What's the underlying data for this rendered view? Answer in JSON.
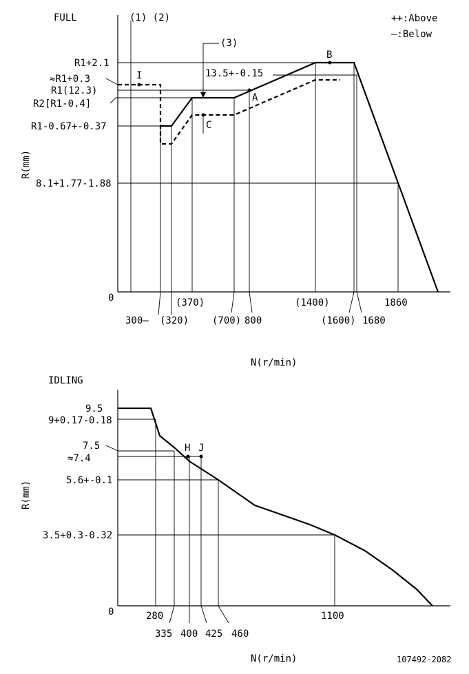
{
  "full": {
    "title": "FULL",
    "notes_12": "(1) (2)",
    "legend_above": "++:Above",
    "legend_below": "—:Below",
    "note3": "(3)",
    "y_axis_label": "R(mm)",
    "x_axis_label": "N(r/min)",
    "y_labels": [
      "R1+2.1",
      "≈R1+0.3",
      "R1(12.3)",
      "R2[R1-0.4]",
      "R1-0.67+-0.37",
      "8.1+1.77-1.88",
      "0"
    ],
    "label_13_5": "13.5+-0.15",
    "points": [
      "I",
      "B",
      "A",
      "C"
    ],
    "x_ticks": [
      "300—",
      "(320)",
      "(370)",
      "(700)",
      "800",
      "(1400)",
      "(1600)",
      "1680",
      "1860"
    ]
  },
  "idling": {
    "title": "IDLING",
    "y_axis_label": "R(mm)",
    "x_axis_label": "N(r/min)",
    "y_labels": [
      "9.5",
      "9+0.17-0.18",
      "7.5",
      "≈7.4",
      "5.6+-0.1",
      "3.5+0.3-0.32",
      "0"
    ],
    "points": [
      "H",
      "J"
    ],
    "x_ticks": [
      "280",
      "335",
      "400",
      "425",
      "460",
      "1100"
    ]
  },
  "footer_code": "107492-2082"
}
